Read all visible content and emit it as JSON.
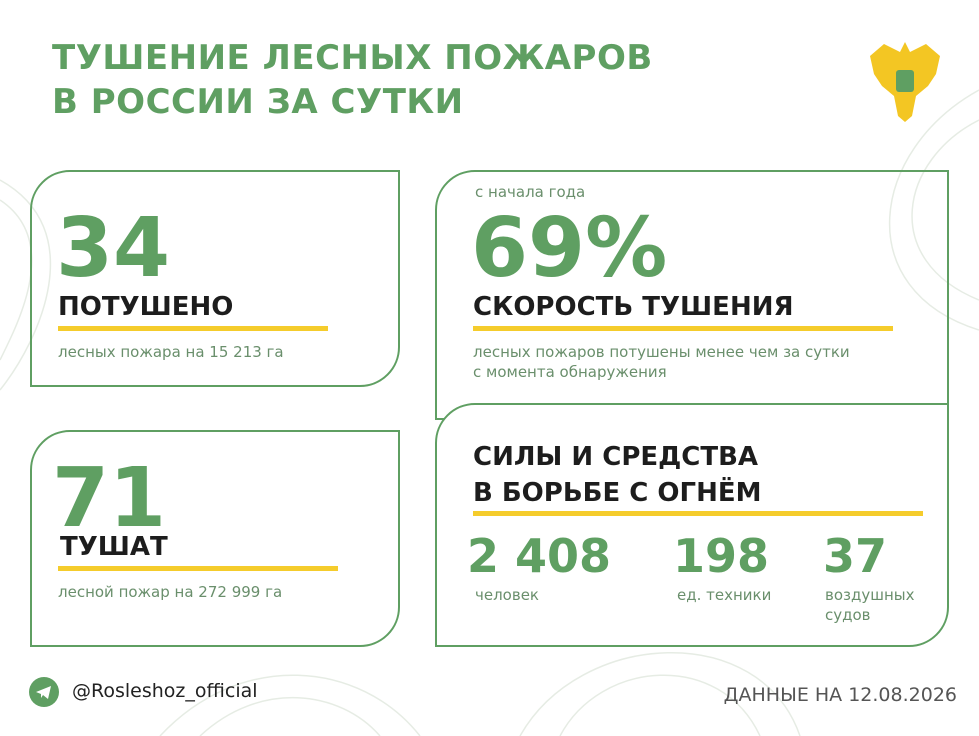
{
  "header": {
    "title": [
      "ТУШЕНИЕ ЛЕСНЫХ ПОЖАРОВ",
      "В РОССИИ ЗА СУТКИ"
    ]
  },
  "cards": [
    {
      "number": "34",
      "label": "ПОТУШЕНО",
      "description": "лесных пожара на 15 213 га"
    },
    {
      "number": "71",
      "label": "ТУШАТ",
      "description": "лесной пожар на 272 999 га"
    },
    {
      "caption": "с начала года",
      "number": "69%",
      "label": "СКОРОСТЬ ТУШЕНИЯ",
      "description": [
        "лесных пожаров потушены менее чем за сутки",
        "с момента обнаружения"
      ]
    },
    {
      "title": [
        "СИЛЫ И СРЕДСТВА",
        "В БОРЬБЕ С ОГНЁМ"
      ],
      "stats": [
        {
          "value": "2 408",
          "label": [
            "человек"
          ]
        },
        {
          "value": "198",
          "label": [
            "ед. техники"
          ]
        },
        {
          "value": "37",
          "label": [
            "воздушных",
            "судов"
          ]
        }
      ]
    }
  ],
  "footer": {
    "handle": "@Rosleshoz_official",
    "date": "ДАННЫЕ НА 12.08.2026"
  }
}
